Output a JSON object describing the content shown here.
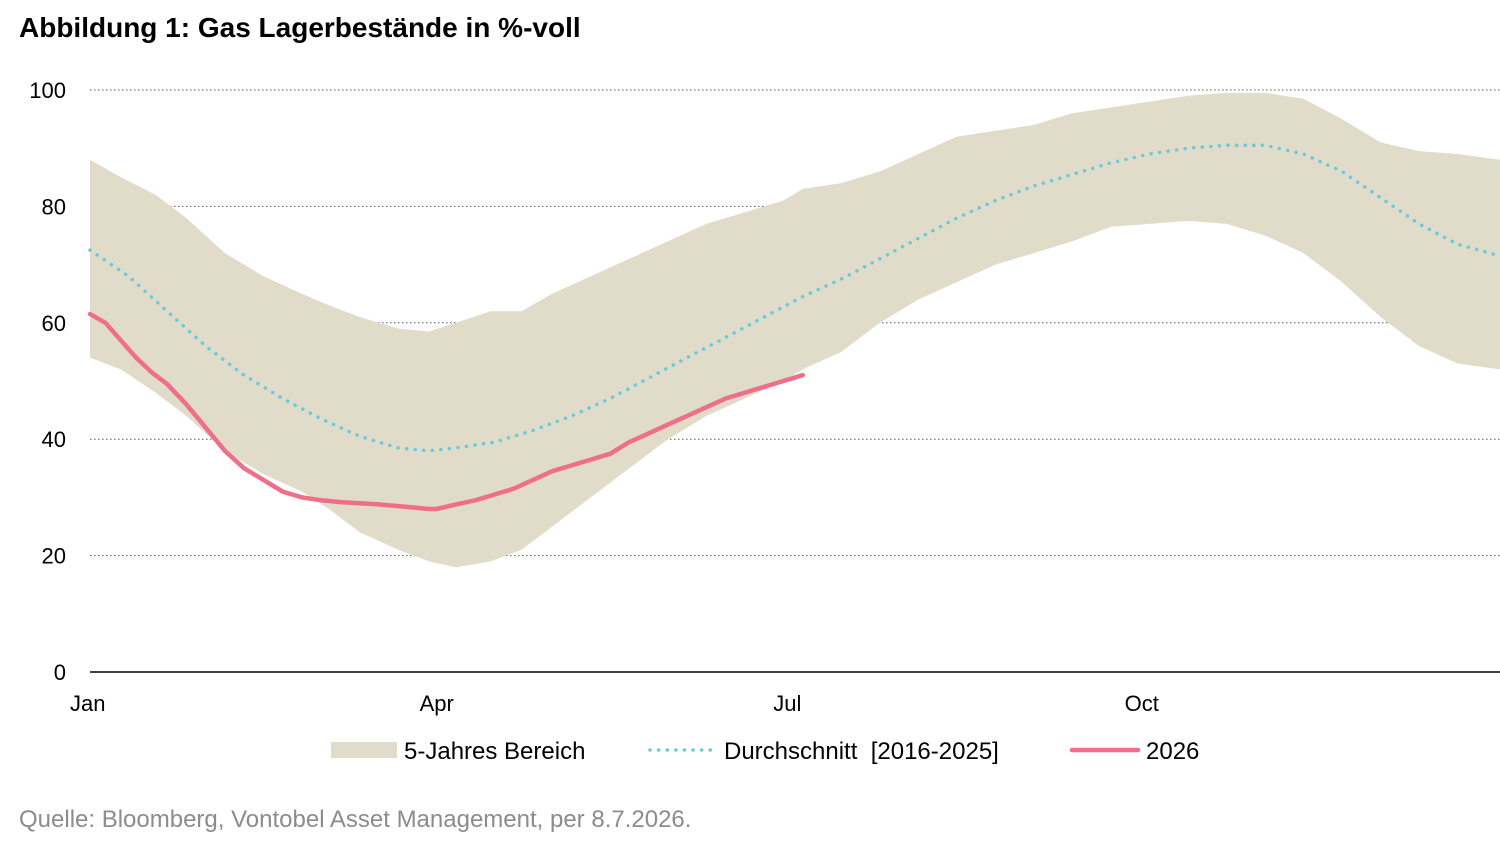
{
  "title": "Abbildung 1: Gas Lagerbestände in %-voll",
  "source": "Quelle: Bloomberg, Vontobel Asset Management, per 8.7.2026.",
  "chart_data": {
    "type": "line",
    "title": "Abbildung 1: Gas Lagerbestände in %-voll",
    "xlabel": "",
    "ylabel": "",
    "ylim": [
      0,
      100
    ],
    "yticks": [
      0,
      20,
      40,
      60,
      80,
      100
    ],
    "xlim": [
      0,
      366
    ],
    "xticks": [
      {
        "label": "Jan",
        "x": 0
      },
      {
        "label": "Apr",
        "x": 90
      },
      {
        "label": "Jul",
        "x": 181
      },
      {
        "label": "Oct",
        "x": 273
      }
    ],
    "grid": "horizontal dotted",
    "legend_position": "bottom",
    "legend": [
      {
        "label": "5-Jahres Bereich",
        "kind": "band",
        "color": "#e1dcc9"
      },
      {
        "label": "Durchschnitt  [2016-2025]",
        "kind": "dotted-line",
        "color": "#6bc9dc"
      },
      {
        "label": "2026",
        "kind": "line",
        "color": "#ef6f8a"
      }
    ],
    "band": {
      "name": "5-Jahres Bereich",
      "color": "#e1dcc9",
      "x": [
        0,
        8,
        17,
        25,
        35,
        45,
        55,
        62,
        70,
        80,
        88,
        95,
        104,
        112,
        120,
        130,
        140,
        150,
        160,
        170,
        180,
        185,
        195,
        205,
        215,
        225,
        235,
        245,
        255,
        265,
        275,
        285,
        295,
        305,
        315,
        325,
        335,
        345,
        355,
        366
      ],
      "upper": [
        88,
        85,
        82,
        78,
        72,
        68,
        65,
        63,
        61,
        59,
        58.5,
        60,
        62,
        62,
        65,
        68,
        71,
        74,
        77,
        79,
        81,
        83,
        84,
        86,
        89,
        92,
        93,
        94,
        96,
        97,
        98,
        99,
        99.5,
        99.5,
        98.5,
        95,
        91,
        89.5,
        89,
        88
      ],
      "lower": [
        54,
        52,
        48,
        44,
        38,
        34,
        31,
        28,
        24,
        21,
        19,
        18,
        19,
        21,
        25,
        30,
        35,
        40,
        44,
        47,
        50,
        52,
        55,
        60,
        64,
        67,
        70,
        72,
        74,
        76.5,
        77,
        77.5,
        77,
        75,
        72,
        67,
        61,
        56,
        53,
        52
      ]
    },
    "series": [
      {
        "name": "Durchschnitt  [2016-2025]",
        "style": "dotted",
        "color": "#6bc9dc",
        "x": [
          0,
          10,
          20,
          30,
          40,
          50,
          60,
          70,
          80,
          88,
          95,
          105,
          115,
          125,
          135,
          145,
          155,
          165,
          175,
          185,
          195,
          205,
          215,
          225,
          235,
          245,
          255,
          265,
          275,
          285,
          295,
          305,
          315,
          325,
          335,
          345,
          355,
          366
        ],
        "values": [
          72.5,
          68,
          62,
          56,
          51,
          47,
          43.5,
          40.5,
          38.5,
          38,
          38.5,
          39.5,
          41.5,
          44,
          47,
          50.5,
          54,
          57.5,
          61,
          64.5,
          67.5,
          71,
          74.5,
          78,
          81,
          83.5,
          85.5,
          87.5,
          89,
          90,
          90.5,
          90.5,
          89,
          86,
          81.5,
          77,
          73.5,
          71.5
        ]
      },
      {
        "name": "2026",
        "style": "solid",
        "color": "#ef6f8a",
        "x": [
          0,
          4,
          8,
          12,
          16,
          20,
          25,
          30,
          35,
          40,
          45,
          50,
          55,
          60,
          65,
          70,
          75,
          80,
          85,
          88,
          90,
          95,
          100,
          105,
          110,
          115,
          120,
          125,
          130,
          135,
          140,
          145,
          150,
          155,
          160,
          165,
          170,
          175,
          180,
          185
        ],
        "values": [
          61.5,
          60,
          57,
          54,
          51.5,
          49.5,
          46,
          42,
          38,
          35,
          33,
          31,
          30,
          29.5,
          29.2,
          29,
          28.8,
          28.5,
          28.2,
          28,
          28,
          28.8,
          29.5,
          30.5,
          31.5,
          33,
          34.5,
          35.5,
          36.5,
          37.5,
          39.5,
          41,
          42.5,
          44,
          45.5,
          47,
          48,
          49,
          50,
          51
        ]
      }
    ]
  }
}
